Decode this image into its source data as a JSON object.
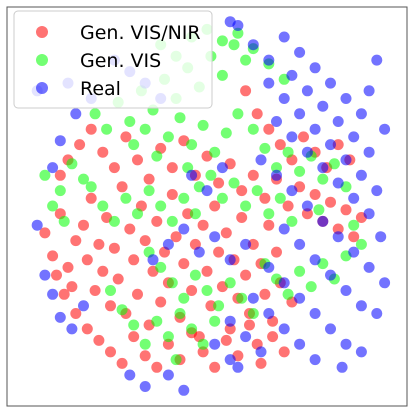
{
  "chart_data": {
    "type": "scatter",
    "title": "",
    "xlabel": "",
    "ylabel": "",
    "axes_visible": false,
    "xlim": [
      0,
      100
    ],
    "ylim": [
      0,
      100
    ],
    "legend": {
      "placement": "top-left",
      "entries": [
        "Gen. VIS/NIR",
        "Gen. VIS",
        "Real"
      ]
    },
    "series": [
      {
        "name": "Gen. VIS/NIR",
        "color": "#ff0000",
        "points": [
          [
            8,
            43
          ],
          [
            10,
            37
          ],
          [
            12,
            48
          ],
          [
            14,
            34
          ],
          [
            15,
            29
          ],
          [
            16,
            41
          ],
          [
            18,
            45
          ],
          [
            19,
            36
          ],
          [
            20,
            52
          ],
          [
            21,
            28
          ],
          [
            22,
            40
          ],
          [
            23,
            33
          ],
          [
            24,
            47
          ],
          [
            25,
            24
          ],
          [
            26,
            39
          ],
          [
            27,
            31
          ],
          [
            28,
            55
          ],
          [
            29,
            22
          ],
          [
            30,
            44
          ],
          [
            31,
            36
          ],
          [
            32,
            27
          ],
          [
            33,
            50
          ],
          [
            34,
            41
          ],
          [
            35,
            19
          ],
          [
            36,
            33
          ],
          [
            37,
            46
          ],
          [
            38,
            25
          ],
          [
            39,
            38
          ],
          [
            40,
            30
          ],
          [
            41,
            53
          ],
          [
            42,
            42
          ],
          [
            43,
            21
          ],
          [
            44,
            35
          ],
          [
            45,
            48
          ],
          [
            46,
            28
          ],
          [
            47,
            40
          ],
          [
            48,
            16
          ],
          [
            49,
            45
          ],
          [
            50,
            33
          ],
          [
            51,
            24
          ],
          [
            52,
            50
          ],
          [
            53,
            38
          ],
          [
            54,
            29
          ],
          [
            55,
            43
          ],
          [
            56,
            18
          ],
          [
            57,
            36
          ],
          [
            58,
            26
          ],
          [
            59,
            47
          ],
          [
            60,
            32
          ],
          [
            61,
            22
          ],
          [
            62,
            40
          ],
          [
            63,
            14
          ],
          [
            64,
            35
          ],
          [
            65,
            27
          ],
          [
            66,
            45
          ],
          [
            67,
            20
          ],
          [
            68,
            38
          ],
          [
            69,
            30
          ],
          [
            70,
            12
          ],
          [
            72,
            25
          ],
          [
            12,
            58
          ],
          [
            14,
            62
          ],
          [
            17,
            66
          ],
          [
            20,
            70
          ],
          [
            23,
            64
          ],
          [
            26,
            60
          ],
          [
            29,
            68
          ],
          [
            32,
            62
          ],
          [
            35,
            57
          ],
          [
            38,
            65
          ],
          [
            41,
            60
          ],
          [
            44,
            67
          ],
          [
            47,
            58
          ],
          [
            50,
            63
          ],
          [
            53,
            56
          ],
          [
            56,
            61
          ],
          [
            59,
            54
          ],
          [
            62,
            58
          ],
          [
            65,
            52
          ],
          [
            68,
            57
          ],
          [
            71,
            50
          ],
          [
            74,
            55
          ],
          [
            76,
            48
          ],
          [
            78,
            53
          ],
          [
            80,
            46
          ],
          [
            82,
            51
          ],
          [
            84,
            44
          ],
          [
            86,
            49
          ],
          [
            88,
            42
          ],
          [
            90,
            47
          ],
          [
            60,
            80
          ],
          [
            63,
            74
          ],
          [
            66,
            70
          ],
          [
            69,
            66
          ],
          [
            72,
            62
          ],
          [
            75,
            68
          ],
          [
            78,
            64
          ],
          [
            81,
            60
          ],
          [
            84,
            66
          ],
          [
            87,
            62
          ],
          [
            11,
            32
          ],
          [
            13,
            27
          ],
          [
            16,
            22
          ],
          [
            19,
            18
          ],
          [
            22,
            15
          ],
          [
            25,
            12
          ],
          [
            28,
            9
          ],
          [
            31,
            16
          ],
          [
            34,
            11
          ],
          [
            37,
            8
          ],
          [
            40,
            14
          ],
          [
            43,
            10
          ],
          [
            46,
            17
          ],
          [
            49,
            12
          ],
          [
            52,
            8
          ],
          [
            55,
            15
          ],
          [
            58,
            11
          ],
          [
            61,
            19
          ],
          [
            64,
            9
          ],
          [
            67,
            16
          ]
        ]
      },
      {
        "name": "Gen. VIS",
        "color": "#00ff00",
        "points": [
          [
            8,
            58
          ],
          [
            10,
            50
          ],
          [
            12,
            54
          ],
          [
            13,
            46
          ],
          [
            15,
            61
          ],
          [
            18,
            57
          ],
          [
            21,
            74
          ],
          [
            24,
            70
          ],
          [
            27,
            77
          ],
          [
            30,
            72
          ],
          [
            33,
            80
          ],
          [
            36,
            75
          ],
          [
            39,
            83
          ],
          [
            42,
            78
          ],
          [
            45,
            86
          ],
          [
            48,
            81
          ],
          [
            51,
            89
          ],
          [
            54,
            84
          ],
          [
            57,
            92
          ],
          [
            60,
            88
          ],
          [
            31,
            66
          ],
          [
            34,
            70
          ],
          [
            37,
            63
          ],
          [
            40,
            68
          ],
          [
            43,
            73
          ],
          [
            46,
            66
          ],
          [
            49,
            71
          ],
          [
            52,
            64
          ],
          [
            55,
            69
          ],
          [
            58,
            74
          ],
          [
            45,
            60
          ],
          [
            48,
            55
          ],
          [
            51,
            58
          ],
          [
            54,
            52
          ],
          [
            57,
            56
          ],
          [
            60,
            50
          ],
          [
            63,
            54
          ],
          [
            66,
            48
          ],
          [
            69,
            52
          ],
          [
            72,
            46
          ],
          [
            35,
            38
          ],
          [
            38,
            34
          ],
          [
            41,
            30
          ],
          [
            44,
            26
          ],
          [
            47,
            32
          ],
          [
            50,
            28
          ],
          [
            53,
            24
          ],
          [
            56,
            30
          ],
          [
            59,
            26
          ],
          [
            62,
            22
          ],
          [
            65,
            35
          ],
          [
            68,
            31
          ],
          [
            71,
            27
          ],
          [
            74,
            33
          ],
          [
            77,
            29
          ],
          [
            80,
            35
          ],
          [
            83,
            31
          ],
          [
            86,
            37
          ],
          [
            88,
            45
          ],
          [
            90,
            40
          ],
          [
            25,
            28
          ],
          [
            28,
            23
          ],
          [
            31,
            19
          ],
          [
            34,
            14
          ],
          [
            37,
            20
          ],
          [
            40,
            16
          ],
          [
            43,
            22
          ],
          [
            46,
            18
          ],
          [
            49,
            14
          ],
          [
            52,
            20
          ],
          [
            20,
            55
          ],
          [
            23,
            50
          ],
          [
            26,
            46
          ],
          [
            29,
            52
          ],
          [
            32,
            48
          ],
          [
            35,
            54
          ],
          [
            38,
            50
          ],
          [
            41,
            46
          ],
          [
            44,
            52
          ],
          [
            47,
            48
          ],
          [
            62,
            70
          ],
          [
            65,
            65
          ],
          [
            68,
            60
          ],
          [
            71,
            64
          ],
          [
            74,
            59
          ],
          [
            77,
            63
          ],
          [
            80,
            57
          ],
          [
            83,
            61
          ],
          [
            86,
            55
          ],
          [
            79,
            49
          ],
          [
            38,
            92
          ],
          [
            42,
            89
          ],
          [
            46,
            94
          ],
          [
            50,
            96
          ],
          [
            54,
            93
          ],
          [
            58,
            95
          ],
          [
            62,
            91
          ],
          [
            66,
            87
          ],
          [
            70,
            83
          ],
          [
            42,
            10
          ]
        ]
      },
      {
        "name": "Real",
        "color": "#0000ff",
        "points": [
          [
            62,
            92
          ],
          [
            66,
            88
          ],
          [
            70,
            94
          ],
          [
            74,
            90
          ],
          [
            78,
            86
          ],
          [
            82,
            82
          ],
          [
            86,
            78
          ],
          [
            90,
            74
          ],
          [
            72,
            84
          ],
          [
            76,
            80
          ],
          [
            80,
            76
          ],
          [
            84,
            72
          ],
          [
            88,
            68
          ],
          [
            92,
            64
          ],
          [
            66,
            82
          ],
          [
            70,
            78
          ],
          [
            74,
            74
          ],
          [
            78,
            70
          ],
          [
            82,
            66
          ],
          [
            86,
            62
          ],
          [
            90,
            58
          ],
          [
            94,
            54
          ],
          [
            68,
            72
          ],
          [
            72,
            68
          ],
          [
            76,
            64
          ],
          [
            80,
            60
          ],
          [
            84,
            56
          ],
          [
            88,
            52
          ],
          [
            92,
            48
          ],
          [
            64,
            62
          ],
          [
            68,
            58
          ],
          [
            72,
            54
          ],
          [
            76,
            50
          ],
          [
            80,
            46
          ],
          [
            84,
            42
          ],
          [
            88,
            38
          ],
          [
            92,
            34
          ],
          [
            70,
            44
          ],
          [
            74,
            40
          ],
          [
            78,
            36
          ],
          [
            82,
            32
          ],
          [
            86,
            28
          ],
          [
            90,
            24
          ],
          [
            66,
            34
          ],
          [
            70,
            30
          ],
          [
            74,
            26
          ],
          [
            78,
            22
          ],
          [
            82,
            18
          ],
          [
            86,
            14
          ],
          [
            62,
            26
          ],
          [
            66,
            22
          ],
          [
            70,
            18
          ],
          [
            74,
            14
          ],
          [
            78,
            10
          ],
          [
            56,
            20
          ],
          [
            60,
            16
          ],
          [
            64,
            12
          ],
          [
            58,
            8
          ],
          [
            52,
            14
          ],
          [
            56,
            10
          ],
          [
            6,
            45
          ],
          [
            8,
            32
          ],
          [
            10,
            27
          ],
          [
            12,
            21
          ],
          [
            15,
            18
          ],
          [
            18,
            24
          ],
          [
            10,
            60
          ],
          [
            12,
            67
          ],
          [
            16,
            74
          ],
          [
            20,
            78
          ],
          [
            36,
            36
          ],
          [
            40,
            40
          ],
          [
            44,
            44
          ],
          [
            48,
            38
          ],
          [
            52,
            42
          ],
          [
            56,
            36
          ],
          [
            60,
            40
          ],
          [
            46,
            58
          ],
          [
            50,
            54
          ],
          [
            54,
            60
          ],
          [
            30,
            6
          ],
          [
            34,
            3
          ],
          [
            40,
            6
          ],
          [
            44,
            2
          ],
          [
            26,
            88
          ],
          [
            30,
            85
          ],
          [
            34,
            82
          ],
          [
            38,
            78
          ],
          [
            6,
            80
          ],
          [
            14,
            82
          ],
          [
            94,
            88
          ],
          [
            92,
            80
          ],
          [
            96,
            70
          ],
          [
            95,
            42
          ],
          [
            96,
            30
          ],
          [
            94,
            22
          ],
          [
            90,
            12
          ],
          [
            85,
            8
          ],
          [
            56,
            98
          ],
          [
            58,
            97
          ]
        ]
      }
    ]
  }
}
